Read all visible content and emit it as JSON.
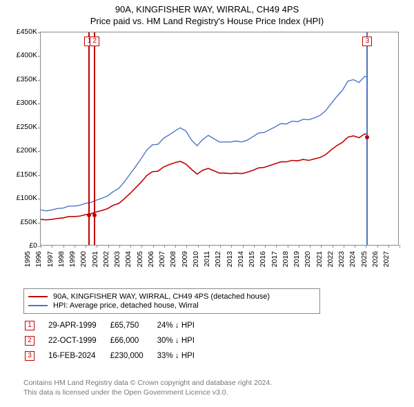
{
  "titles": {
    "main": "90A, KINGFISHER WAY, WIRRAL, CH49 4PS",
    "sub": "Price paid vs. HM Land Registry's House Price Index (HPI)"
  },
  "chart": {
    "type": "line",
    "x": {
      "min": 1995,
      "max": 2027,
      "ticks": [
        1995,
        1996,
        1997,
        1998,
        1999,
        2000,
        2001,
        2002,
        2003,
        2004,
        2005,
        2006,
        2007,
        2008,
        2009,
        2010,
        2011,
        2012,
        2013,
        2014,
        2015,
        2016,
        2017,
        2018,
        2019,
        2020,
        2021,
        2022,
        2023,
        2024,
        2025,
        2026,
        2027
      ]
    },
    "y": {
      "min": 0,
      "max": 450000,
      "ticks": [
        0,
        50000,
        100000,
        150000,
        200000,
        250000,
        300000,
        350000,
        400000,
        450000
      ],
      "prefix": "£",
      "suffix_k": "K"
    },
    "series": [
      {
        "key": "hpi",
        "label": "HPI: Average price, detached house, Wirral",
        "color": "#4a74c9",
        "width": 1.4,
        "points": [
          [
            1995,
            74000
          ],
          [
            1995.5,
            72000
          ],
          [
            1996,
            74000
          ],
          [
            1996.5,
            77000
          ],
          [
            1997,
            78000
          ],
          [
            1997.5,
            82000
          ],
          [
            1998,
            82000
          ],
          [
            1998.5,
            84000
          ],
          [
            1999,
            88000
          ],
          [
            1999.5,
            90000
          ],
          [
            2000,
            95000
          ],
          [
            2000.5,
            99000
          ],
          [
            2001,
            104000
          ],
          [
            2001.5,
            113000
          ],
          [
            2002,
            120000
          ],
          [
            2002.5,
            134000
          ],
          [
            2003,
            150000
          ],
          [
            2003.5,
            166000
          ],
          [
            2004,
            183000
          ],
          [
            2004.5,
            201000
          ],
          [
            2005,
            212000
          ],
          [
            2005.5,
            213000
          ],
          [
            2006,
            226000
          ],
          [
            2006.5,
            233000
          ],
          [
            2007,
            241000
          ],
          [
            2007.5,
            248000
          ],
          [
            2008,
            241000
          ],
          [
            2008.5,
            222000
          ],
          [
            2009,
            210000
          ],
          [
            2009.5,
            223000
          ],
          [
            2010,
            232000
          ],
          [
            2010.5,
            225000
          ],
          [
            2011,
            218000
          ],
          [
            2011.5,
            218000
          ],
          [
            2012,
            218000
          ],
          [
            2012.5,
            220000
          ],
          [
            2013,
            218000
          ],
          [
            2013.5,
            222000
          ],
          [
            2014,
            229000
          ],
          [
            2014.5,
            237000
          ],
          [
            2015,
            238000
          ],
          [
            2015.5,
            244000
          ],
          [
            2016,
            250000
          ],
          [
            2016.5,
            257000
          ],
          [
            2017,
            256000
          ],
          [
            2017.5,
            262000
          ],
          [
            2018,
            261000
          ],
          [
            2018.5,
            266000
          ],
          [
            2019,
            265000
          ],
          [
            2019.5,
            269000
          ],
          [
            2020,
            274000
          ],
          [
            2020.5,
            284000
          ],
          [
            2021,
            299000
          ],
          [
            2021.5,
            314000
          ],
          [
            2022,
            327000
          ],
          [
            2022.5,
            347000
          ],
          [
            2023,
            350000
          ],
          [
            2023.5,
            344000
          ],
          [
            2024,
            357000
          ],
          [
            2024.3,
            356000
          ]
        ]
      },
      {
        "key": "price_paid",
        "label": "90A, KINGFISHER WAY, WIRRAL, CH49 4PS (detached house)",
        "color": "#c00000",
        "width": 1.6,
        "points": [
          [
            1995,
            54000
          ],
          [
            1995.5,
            53000
          ],
          [
            1996,
            54000
          ],
          [
            1996.5,
            56000
          ],
          [
            1997,
            57000
          ],
          [
            1997.5,
            60000
          ],
          [
            1998,
            60000
          ],
          [
            1998.5,
            61000
          ],
          [
            1999,
            64000
          ],
          [
            1999.5,
            66000
          ],
          [
            2000,
            70000
          ],
          [
            2000.5,
            73000
          ],
          [
            2001,
            77000
          ],
          [
            2001.5,
            84000
          ],
          [
            2002,
            88000
          ],
          [
            2002.5,
            98000
          ],
          [
            2003,
            109000
          ],
          [
            2003.5,
            121000
          ],
          [
            2004,
            133000
          ],
          [
            2004.5,
            147000
          ],
          [
            2005,
            155000
          ],
          [
            2005.5,
            156000
          ],
          [
            2006,
            165000
          ],
          [
            2006.5,
            170000
          ],
          [
            2007,
            174000
          ],
          [
            2007.5,
            177000
          ],
          [
            2008,
            171000
          ],
          [
            2008.5,
            160000
          ],
          [
            2009,
            150000
          ],
          [
            2009.5,
            158000
          ],
          [
            2010,
            162000
          ],
          [
            2010.5,
            157000
          ],
          [
            2011,
            152000
          ],
          [
            2011.5,
            152000
          ],
          [
            2012,
            151000
          ],
          [
            2012.5,
            152000
          ],
          [
            2013,
            151000
          ],
          [
            2013.5,
            154000
          ],
          [
            2014,
            158000
          ],
          [
            2014.5,
            163000
          ],
          [
            2015,
            164000
          ],
          [
            2015.5,
            168000
          ],
          [
            2016,
            172000
          ],
          [
            2016.5,
            176000
          ],
          [
            2017,
            176000
          ],
          [
            2017.5,
            179000
          ],
          [
            2018,
            178000
          ],
          [
            2018.5,
            181000
          ],
          [
            2019,
            179000
          ],
          [
            2019.5,
            182000
          ],
          [
            2020,
            185000
          ],
          [
            2020.5,
            191000
          ],
          [
            2021,
            201000
          ],
          [
            2021.5,
            210000
          ],
          [
            2022,
            217000
          ],
          [
            2022.5,
            228000
          ],
          [
            2023,
            231000
          ],
          [
            2023.5,
            227000
          ],
          [
            2024,
            235000
          ],
          [
            2024.3,
            234000
          ]
        ]
      }
    ],
    "sale_markers": {
      "color": "#c00000",
      "r": 3,
      "points": [
        [
          1999.33,
          65750
        ],
        [
          1999.81,
          66000
        ],
        [
          2024.13,
          230000
        ]
      ]
    },
    "vbands": [
      {
        "year": 1999.33,
        "width_years": 0.12,
        "border": "#c00000",
        "fill": "#fcdfe6"
      },
      {
        "year": 1999.81,
        "width_years": 0.12,
        "border": "#c00000",
        "fill": "#fcdfe6"
      },
      {
        "year": 2024.13,
        "width_years": 0.12,
        "border": "#4a74c9",
        "fill": "#e2e8f7"
      }
    ],
    "callouts": [
      {
        "n": "1",
        "year": 1999.33
      },
      {
        "n": "2",
        "year": 1999.81
      },
      {
        "n": "3",
        "year": 2024.13
      }
    ]
  },
  "legend": {
    "rows": [
      {
        "color": "#c00000",
        "label": "90A, KINGFISHER WAY, WIRRAL, CH49 4PS (detached house)"
      },
      {
        "color": "#4a74c9",
        "label": "HPI: Average price, detached house, Wirral"
      }
    ]
  },
  "events": {
    "headers": [
      "",
      "",
      "",
      ""
    ],
    "rows": [
      {
        "n": "1",
        "date": "29-APR-1999",
        "price": "£65,750",
        "delta": "24% ↓ HPI"
      },
      {
        "n": "2",
        "date": "22-OCT-1999",
        "price": "£66,000",
        "delta": "30% ↓ HPI"
      },
      {
        "n": "3",
        "date": "16-FEB-2024",
        "price": "£230,000",
        "delta": "33% ↓ HPI"
      }
    ]
  },
  "footer": {
    "l1": "Contains HM Land Registry data © Crown copyright and database right 2024.",
    "l2": "This data is licensed under the Open Government Licence v3.0."
  }
}
